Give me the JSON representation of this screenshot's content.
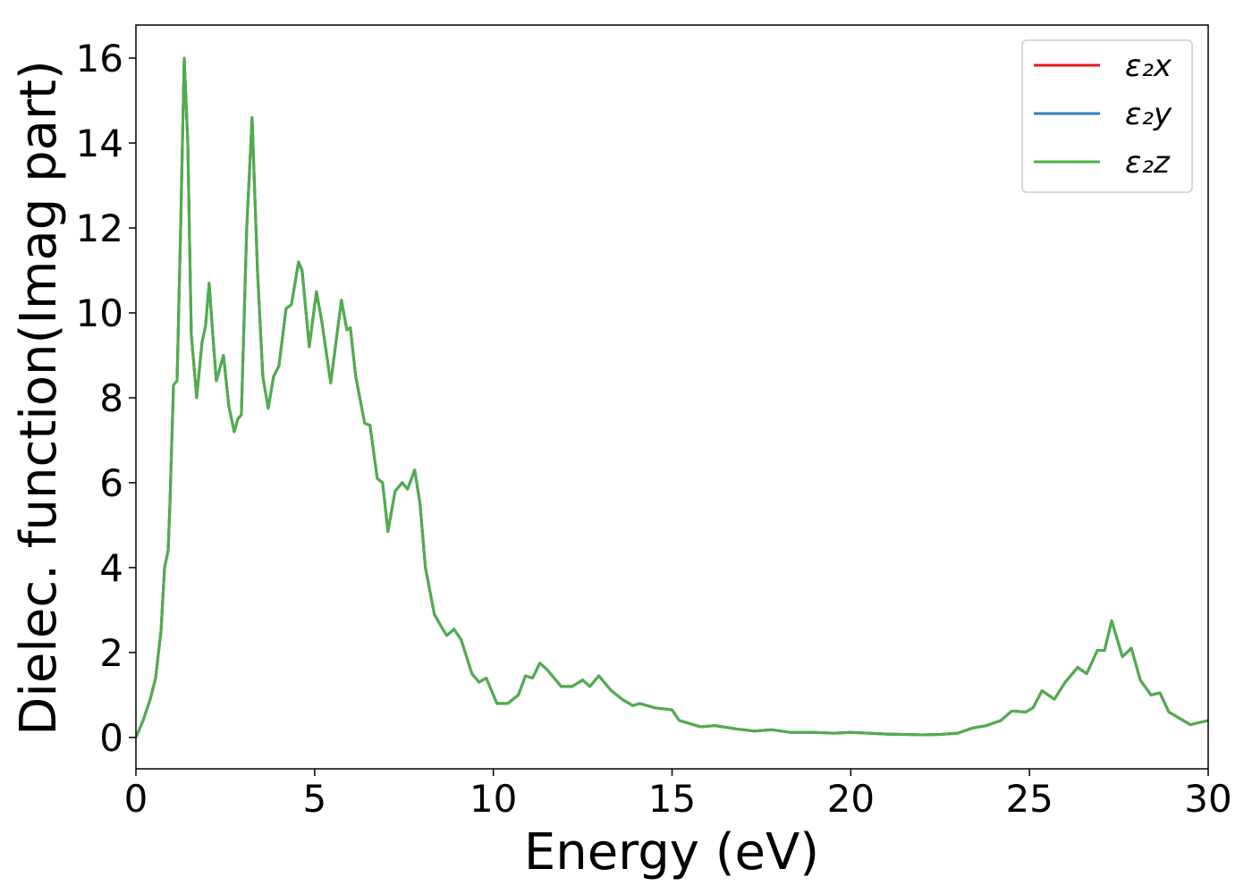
{
  "chart_data": {
    "type": "line",
    "xlabel": "Energy (eV)",
    "ylabel": "Dielec. function(Imag part)",
    "xlim": [
      0,
      30
    ],
    "ylim": [
      -0.74,
      16.78
    ],
    "xticks": [
      0,
      5,
      10,
      15,
      20,
      25,
      30
    ],
    "yticks": [
      0,
      2,
      4,
      6,
      8,
      10,
      12,
      14,
      16
    ],
    "legend": "upper right",
    "x": [
      0,
      0.2,
      0.4,
      0.55,
      0.7,
      0.8,
      0.9,
      0.95,
      1.05,
      1.15,
      1.25,
      1.35,
      1.45,
      1.55,
      1.7,
      1.85,
      1.95,
      2.05,
      2.15,
      2.25,
      2.45,
      2.6,
      2.75,
      2.85,
      2.95,
      3.1,
      3.25,
      3.4,
      3.55,
      3.7,
      3.85,
      4.0,
      4.2,
      4.35,
      4.55,
      4.65,
      4.85,
      5.05,
      5.2,
      5.45,
      5.75,
      5.9,
      6.0,
      6.15,
      6.4,
      6.55,
      6.75,
      6.9,
      7.05,
      7.25,
      7.45,
      7.6,
      7.8,
      7.95,
      8.1,
      8.35,
      8.55,
      8.7,
      8.9,
      9.1,
      9.4,
      9.6,
      9.8,
      10.1,
      10.4,
      10.7,
      10.9,
      11.1,
      11.3,
      11.5,
      11.9,
      12.2,
      12.5,
      12.7,
      12.95,
      13.3,
      13.6,
      13.9,
      14.1,
      14.5,
      15.0,
      15.2,
      15.8,
      16.2,
      16.8,
      17.3,
      17.8,
      18.3,
      19,
      19.5,
      20,
      20.5,
      21,
      22,
      22.5,
      23,
      23.4,
      23.8,
      24.2,
      24.5,
      24.9,
      25.1,
      25.35,
      25.7,
      26.0,
      26.35,
      26.6,
      26.9,
      27.1,
      27.3,
      27.6,
      27.85,
      28.1,
      28.4,
      28.65,
      28.9,
      29.5,
      30
    ],
    "series": [
      {
        "name": "ε₂x",
        "color": "#e41a1c",
        "values": [
          0,
          0.4,
          0.9,
          1.4,
          2.5,
          4.0,
          4.4,
          5.5,
          8.3,
          8.4,
          12,
          16.0,
          14,
          9.5,
          8.0,
          9.3,
          9.7,
          10.7,
          9.5,
          8.4,
          9.0,
          7.8,
          7.2,
          7.5,
          7.6,
          12,
          14.6,
          11,
          8.5,
          7.75,
          8.5,
          8.75,
          10.1,
          10.2,
          11.2,
          11.0,
          9.2,
          10.5,
          9.8,
          8.35,
          10.3,
          9.6,
          9.65,
          8.5,
          7.4,
          7.35,
          6.1,
          6.0,
          4.85,
          5.8,
          6.0,
          5.85,
          6.3,
          5.5,
          4.0,
          2.9,
          2.6,
          2.4,
          2.55,
          2.3,
          1.5,
          1.3,
          1.4,
          0.8,
          0.8,
          1.0,
          1.45,
          1.4,
          1.75,
          1.6,
          1.2,
          1.2,
          1.35,
          1.2,
          1.45,
          1.1,
          0.9,
          0.75,
          0.8,
          0.7,
          0.65,
          0.4,
          0.25,
          0.28,
          0.2,
          0.15,
          0.18,
          0.12,
          0.12,
          0.1,
          0.12,
          0.1,
          0.08,
          0.06,
          0.07,
          0.1,
          0.22,
          0.28,
          0.4,
          0.62,
          0.6,
          0.7,
          1.1,
          0.9,
          1.3,
          1.65,
          1.5,
          2.05,
          2.05,
          2.75,
          1.9,
          2.1,
          1.35,
          1.0,
          1.05,
          0.6,
          0.3,
          0.4
        ]
      },
      {
        "name": "ε₂y",
        "color": "#377eb8",
        "values": [
          0,
          0.4,
          0.9,
          1.4,
          2.5,
          4.0,
          4.4,
          5.5,
          8.3,
          8.4,
          12,
          16.0,
          14,
          9.5,
          8.0,
          9.3,
          9.7,
          10.7,
          9.5,
          8.4,
          9.0,
          7.8,
          7.2,
          7.5,
          7.6,
          12,
          14.6,
          11,
          8.5,
          7.75,
          8.5,
          8.75,
          10.1,
          10.2,
          11.2,
          11.0,
          9.2,
          10.5,
          9.8,
          8.35,
          10.3,
          9.6,
          9.65,
          8.5,
          7.4,
          7.35,
          6.1,
          6.0,
          4.85,
          5.8,
          6.0,
          5.85,
          6.3,
          5.5,
          4.0,
          2.9,
          2.6,
          2.4,
          2.55,
          2.3,
          1.5,
          1.3,
          1.4,
          0.8,
          0.8,
          1.0,
          1.45,
          1.4,
          1.75,
          1.6,
          1.2,
          1.2,
          1.35,
          1.2,
          1.45,
          1.1,
          0.9,
          0.75,
          0.8,
          0.7,
          0.65,
          0.4,
          0.25,
          0.28,
          0.2,
          0.15,
          0.18,
          0.12,
          0.12,
          0.1,
          0.12,
          0.1,
          0.08,
          0.06,
          0.07,
          0.1,
          0.22,
          0.28,
          0.4,
          0.62,
          0.6,
          0.7,
          1.1,
          0.9,
          1.3,
          1.65,
          1.5,
          2.05,
          2.05,
          2.75,
          1.9,
          2.1,
          1.35,
          1.0,
          1.05,
          0.6,
          0.3,
          0.4
        ]
      },
      {
        "name": "ε₂z",
        "color": "#4daf4a",
        "values": [
          0,
          0.4,
          0.9,
          1.4,
          2.5,
          4.0,
          4.4,
          5.5,
          8.3,
          8.4,
          12,
          16.0,
          14,
          9.5,
          8.0,
          9.3,
          9.7,
          10.7,
          9.5,
          8.4,
          9.0,
          7.8,
          7.2,
          7.5,
          7.6,
          12,
          14.6,
          11,
          8.5,
          7.75,
          8.5,
          8.75,
          10.1,
          10.2,
          11.2,
          11.0,
          9.2,
          10.5,
          9.8,
          8.35,
          10.3,
          9.6,
          9.65,
          8.5,
          7.4,
          7.35,
          6.1,
          6.0,
          4.85,
          5.8,
          6.0,
          5.85,
          6.3,
          5.5,
          4.0,
          2.9,
          2.6,
          2.4,
          2.55,
          2.3,
          1.5,
          1.3,
          1.4,
          0.8,
          0.8,
          1.0,
          1.45,
          1.4,
          1.75,
          1.6,
          1.2,
          1.2,
          1.35,
          1.2,
          1.45,
          1.1,
          0.9,
          0.75,
          0.8,
          0.7,
          0.65,
          0.4,
          0.25,
          0.28,
          0.2,
          0.15,
          0.18,
          0.12,
          0.12,
          0.1,
          0.12,
          0.1,
          0.08,
          0.06,
          0.07,
          0.1,
          0.22,
          0.28,
          0.4,
          0.62,
          0.6,
          0.7,
          1.1,
          0.9,
          1.3,
          1.65,
          1.5,
          2.05,
          2.05,
          2.75,
          1.9,
          2.1,
          1.35,
          1.0,
          1.05,
          0.6,
          0.3,
          0.4
        ]
      }
    ]
  }
}
